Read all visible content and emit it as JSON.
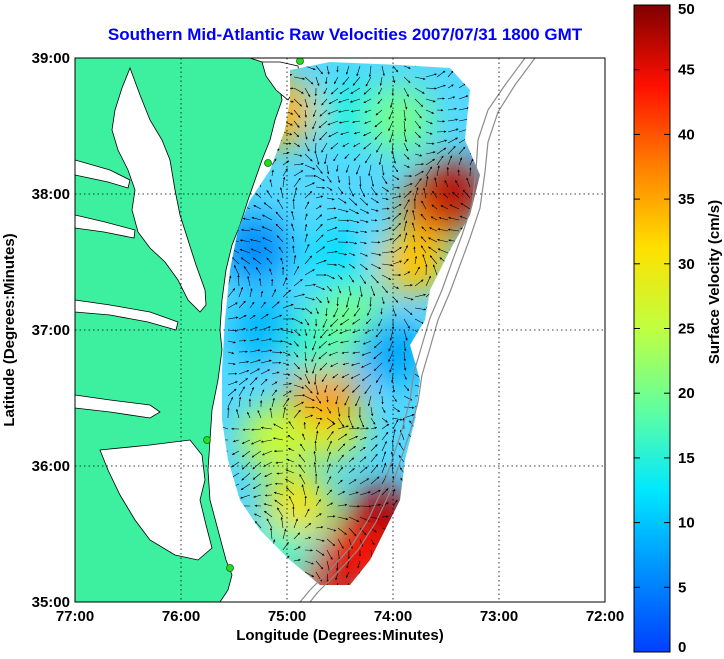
{
  "chart_data": {
    "type": "heatmap",
    "title": "Southern Mid-Atlantic Raw Velocities 2007/07/31 1800 GMT",
    "xlabel": "Longitude (Degrees:Minutes)",
    "ylabel": "Latitude (Degrees:Minutes)",
    "colorbar_label": "Surface Velocity (cm/s)",
    "xlim": [
      -77,
      -72
    ],
    "ylim": [
      35,
      39
    ],
    "x_ticks": [
      {
        "value": -77,
        "label": "77:00"
      },
      {
        "value": -76,
        "label": "76:00"
      },
      {
        "value": -75,
        "label": "75:00"
      },
      {
        "value": -74,
        "label": "74:00"
      },
      {
        "value": -73,
        "label": "73:00"
      },
      {
        "value": -72,
        "label": "72:00"
      }
    ],
    "y_ticks": [
      {
        "value": 35,
        "label": "35:00"
      },
      {
        "value": 36,
        "label": "36:00"
      },
      {
        "value": 37,
        "label": "37:00"
      },
      {
        "value": 38,
        "label": "38:00"
      },
      {
        "value": 39,
        "label": "39:00"
      }
    ],
    "grid": true,
    "colorbar": {
      "min": 0,
      "max": 50,
      "ticks": [
        {
          "value": 0,
          "label": "0"
        },
        {
          "value": 5,
          "label": "5"
        },
        {
          "value": 10,
          "label": "10"
        },
        {
          "value": 15,
          "label": "15"
        },
        {
          "value": 20,
          "label": "20"
        },
        {
          "value": 25,
          "label": "25"
        },
        {
          "value": 30,
          "label": "30"
        },
        {
          "value": 35,
          "label": "35"
        },
        {
          "value": 40,
          "label": "40"
        },
        {
          "value": 45,
          "label": "45"
        },
        {
          "value": 50,
          "label": "50"
        }
      ]
    },
    "colors": {
      "land": "#3df0a0",
      "coast": "#000000",
      "title": "#0000ff",
      "bathymetry": "#8c8c8c",
      "station": "#22dd22"
    },
    "velocity_regions": [
      {
        "lon": -74.5,
        "lat": 37.5,
        "value": 12
      },
      {
        "lon": -73.6,
        "lat": 37.9,
        "value": 38
      },
      {
        "lon": -73.45,
        "lat": 38.0,
        "value": 47
      },
      {
        "lon": -73.8,
        "lat": 37.5,
        "value": 33
      },
      {
        "lon": -74.6,
        "lat": 36.3,
        "value": 28
      },
      {
        "lon": -74.65,
        "lat": 36.55,
        "value": 36
      },
      {
        "lon": -75.1,
        "lat": 36.2,
        "value": 26
      },
      {
        "lon": -74.9,
        "lat": 35.7,
        "value": 30
      },
      {
        "lon": -74.1,
        "lat": 35.6,
        "value": 48
      },
      {
        "lon": -74.3,
        "lat": 35.35,
        "value": 44
      },
      {
        "lon": -74.7,
        "lat": 35.1,
        "value": 46
      },
      {
        "lon": -75.1,
        "lat": 35.3,
        "value": 16
      },
      {
        "lon": -75.2,
        "lat": 37.0,
        "value": 9
      },
      {
        "lon": -74.7,
        "lat": 36.9,
        "value": 16
      },
      {
        "lon": -75.05,
        "lat": 38.6,
        "value": 34
      },
      {
        "lon": -74.4,
        "lat": 38.6,
        "value": 14
      },
      {
        "lon": -75.3,
        "lat": 37.6,
        "value": 6
      },
      {
        "lon": -74.4,
        "lat": 37.1,
        "value": 20
      },
      {
        "lon": -74.0,
        "lat": 36.85,
        "value": 8
      },
      {
        "lon": -73.95,
        "lat": 38.55,
        "value": 20
      }
    ]
  }
}
